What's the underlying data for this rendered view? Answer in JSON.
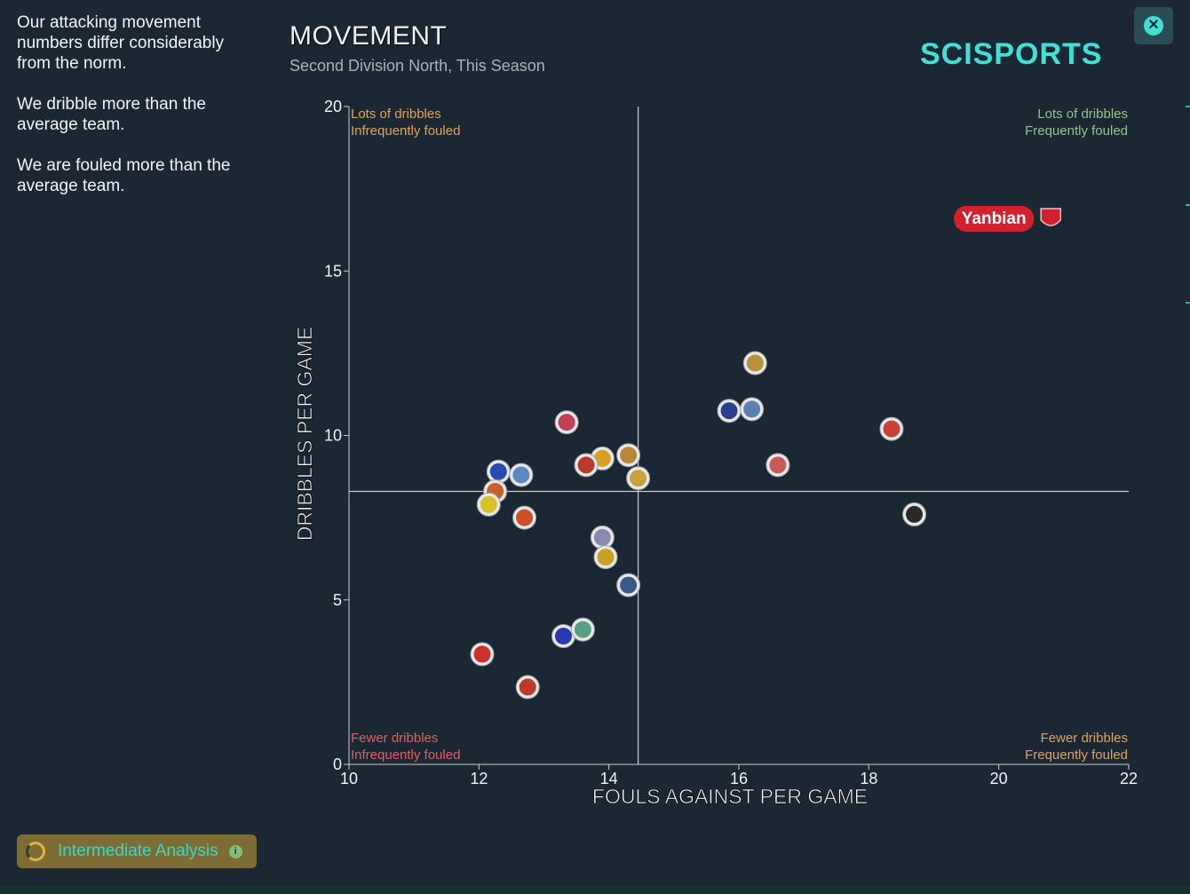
{
  "side_panel": {
    "paragraphs": [
      "Our attacking movement numbers differ considerably from the norm.",
      "We dribble more than the average team.",
      "We are fouled more than the average team."
    ]
  },
  "badge": {
    "label": "Intermediate Analysis",
    "info": "i"
  },
  "header": {
    "title": "MOVEMENT",
    "subtitle": "Second Division North, This Season",
    "brand": "SCISPORTS",
    "close": "✕"
  },
  "chart_data": {
    "type": "scatter",
    "xlabel": "FOULS AGAINST PER GAME",
    "ylabel": "DRIBBLES PER GAME",
    "xlim": [
      10,
      22
    ],
    "ylim": [
      0,
      20
    ],
    "xticks": [
      10,
      12,
      14,
      16,
      18,
      20,
      22
    ],
    "yticks": [
      0,
      5,
      10,
      15,
      20
    ],
    "average_x": 14.45,
    "average_y": 8.3,
    "quadrant_labels": {
      "top_left": [
        "Lots of dribbles",
        "Infrequently fouled"
      ],
      "top_right": [
        "Lots of dribbles",
        "Frequently fouled"
      ],
      "bottom_left": [
        "Fewer dribbles",
        "Infrequently fouled"
      ],
      "bottom_right": [
        "Fewer dribbles",
        "Frequently fouled"
      ]
    },
    "colors": {
      "top_left": "#e0a35a",
      "top_right": "#8fc48a",
      "bottom_left": "#e06060",
      "bottom_right": "#e0a35a",
      "highlight": "#d3202f"
    },
    "highlight": {
      "name": "Yanbian",
      "x": 20.8,
      "y": 16.6
    },
    "points": [
      {
        "x": 16.25,
        "y": 12.2,
        "color": "#b8923a"
      },
      {
        "x": 15.85,
        "y": 10.75,
        "color": "#2c3f8f"
      },
      {
        "x": 16.2,
        "y": 10.8,
        "color": "#5b7fb0"
      },
      {
        "x": 18.35,
        "y": 10.2,
        "color": "#c8423a"
      },
      {
        "x": 16.6,
        "y": 9.1,
        "color": "#c85a5a"
      },
      {
        "x": 18.7,
        "y": 7.6,
        "color": "#2a2a2a"
      },
      {
        "x": 13.35,
        "y": 10.4,
        "color": "#c0405a"
      },
      {
        "x": 13.9,
        "y": 9.3,
        "color": "#d8a020"
      },
      {
        "x": 14.3,
        "y": 9.4,
        "color": "#b8863a"
      },
      {
        "x": 13.65,
        "y": 9.1,
        "color": "#b83a2a"
      },
      {
        "x": 14.45,
        "y": 8.7,
        "color": "#c8a23a"
      },
      {
        "x": 12.3,
        "y": 8.9,
        "color": "#2a4ab0"
      },
      {
        "x": 12.65,
        "y": 8.8,
        "color": "#5a8ac0"
      },
      {
        "x": 12.25,
        "y": 8.3,
        "color": "#c8602a"
      },
      {
        "x": 12.15,
        "y": 7.9,
        "color": "#d8c02a"
      },
      {
        "x": 12.7,
        "y": 7.5,
        "color": "#d0502a"
      },
      {
        "x": 13.9,
        "y": 6.9,
        "color": "#8a8ab0"
      },
      {
        "x": 13.95,
        "y": 6.3,
        "color": "#c8a220"
      },
      {
        "x": 14.3,
        "y": 5.45,
        "color": "#3a5a8a"
      },
      {
        "x": 13.3,
        "y": 3.9,
        "color": "#2a3ab0"
      },
      {
        "x": 13.6,
        "y": 4.1,
        "color": "#5aa080"
      },
      {
        "x": 12.05,
        "y": 3.35,
        "color": "#d0302a"
      },
      {
        "x": 12.75,
        "y": 2.35,
        "color": "#c03a2a"
      }
    ]
  }
}
